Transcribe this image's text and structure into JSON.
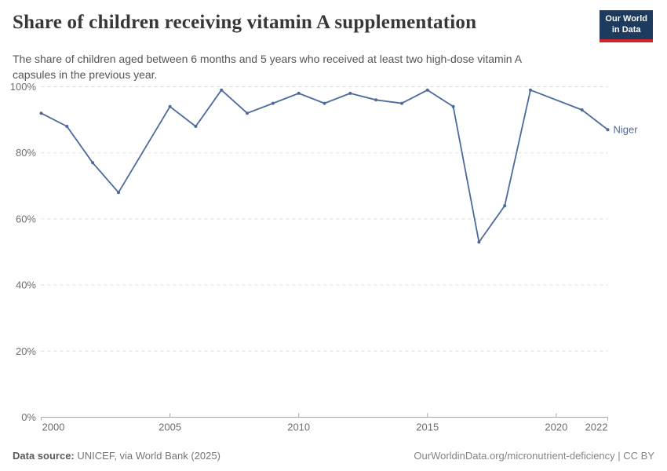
{
  "header": {
    "title": "Share of children receiving vitamin A supplementation",
    "subtitle": "The share of children aged between 6 months and 5 years who received at least two high-dose vitamin A capsules in the previous year."
  },
  "logo": {
    "line1": "Our World",
    "line2": "in Data"
  },
  "footer": {
    "source_label": "Data source:",
    "source_text": "UNICEF, via World Bank (2025)",
    "right_text": "OurWorldinData.org/micronutrient-deficiency | CC BY"
  },
  "colors": {
    "line": "#4C6A9C",
    "grid": "#dcdcdc",
    "axis": "#a8a8a8",
    "tick_text": "#6e6e6e",
    "logo_bg": "#1d3a5f",
    "logo_red": "#cf2328"
  },
  "chart_data": {
    "type": "line",
    "title": "Share of children receiving vitamin A supplementation",
    "subtitle": "The share of children aged between 6 months and 5 years who received at least two high-dose vitamin A capsules in the previous year.",
    "xlabel": "",
    "ylabel": "",
    "xlim": [
      2000,
      2022
    ],
    "ylim": [
      0,
      100
    ],
    "grid": "horizontal-dashed",
    "legend_position": "end-of-line-label",
    "y_ticks": [
      {
        "value": 0,
        "label": "0%"
      },
      {
        "value": 20,
        "label": "20%"
      },
      {
        "value": 40,
        "label": "40%"
      },
      {
        "value": 60,
        "label": "60%"
      },
      {
        "value": 80,
        "label": "80%"
      },
      {
        "value": 100,
        "label": "100%"
      }
    ],
    "x_ticks": [
      {
        "value": 2000,
        "label": "2000"
      },
      {
        "value": 2005,
        "label": "2005"
      },
      {
        "value": 2010,
        "label": "2010"
      },
      {
        "value": 2015,
        "label": "2015"
      },
      {
        "value": 2020,
        "label": "2020"
      },
      {
        "value": 2022,
        "label": "2022"
      }
    ],
    "missing_years": [
      2004,
      2020
    ],
    "series": [
      {
        "name": "Niger",
        "color": "#4C6A9C",
        "points": [
          [
            2000,
            92
          ],
          [
            2001,
            88
          ],
          [
            2002,
            77
          ],
          [
            2003,
            68
          ],
          [
            2005,
            94
          ],
          [
            2006,
            88
          ],
          [
            2007,
            99
          ],
          [
            2008,
            92
          ],
          [
            2009,
            95
          ],
          [
            2010,
            98
          ],
          [
            2011,
            95
          ],
          [
            2012,
            98
          ],
          [
            2013,
            96
          ],
          [
            2014,
            95
          ],
          [
            2015,
            99
          ],
          [
            2016,
            94
          ],
          [
            2017,
            53
          ],
          [
            2018,
            64
          ],
          [
            2019,
            99
          ],
          [
            2021,
            93
          ],
          [
            2022,
            87
          ]
        ]
      }
    ]
  }
}
